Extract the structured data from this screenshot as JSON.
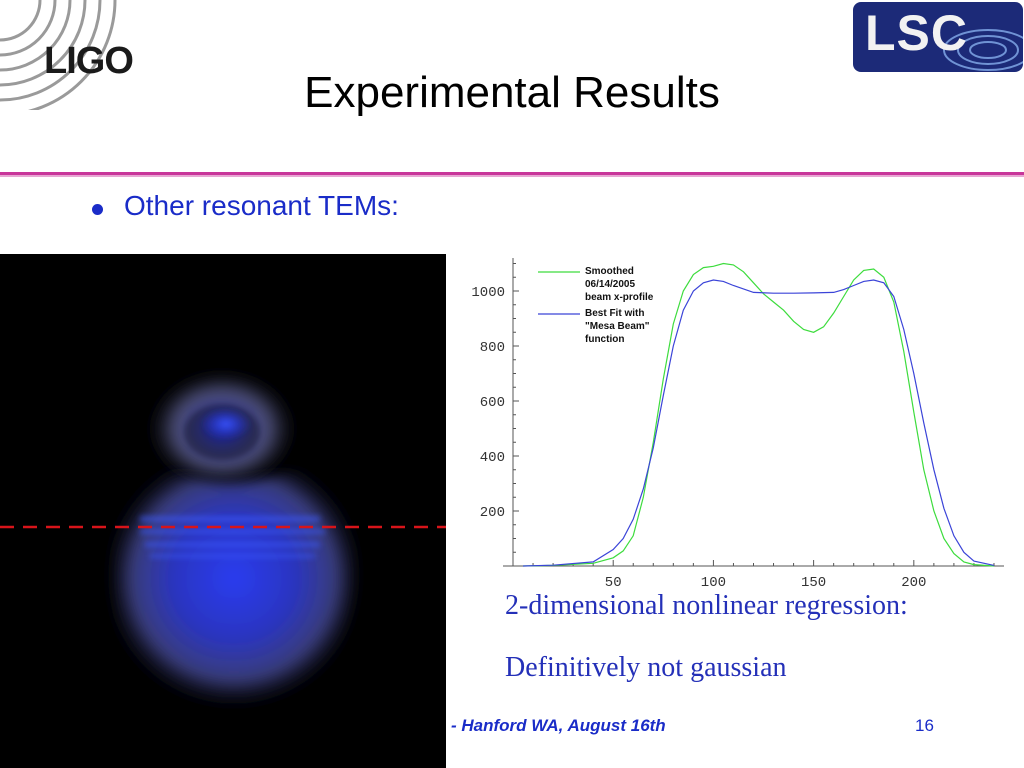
{
  "header": {
    "ligo_logo_text": "LIGO",
    "lsc_logo_text": "LSC",
    "title": "Experimental Results"
  },
  "bullets": [
    {
      "text": "Other resonant TEMs:"
    }
  ],
  "notes": [
    "2-dimensional nonlinear regression:",
    "Definitively not gaussian"
  ],
  "footer": {
    "text": "- Hanford WA, August 16th",
    "page_number": "16"
  },
  "colors": {
    "accent_blue": "#1a2cc8",
    "divider_magenta": "#c8359a",
    "smoothed_series": "#3ddc3d",
    "fit_series": "#3b44d8",
    "scan_line": "#d8141a"
  },
  "chart_data": {
    "type": "line",
    "title": "",
    "xlabel": "",
    "ylabel": "",
    "xlim": [
      0,
      245
    ],
    "ylim": [
      0,
      1120
    ],
    "xticks": [
      50,
      100,
      150,
      200
    ],
    "yticks": [
      200,
      400,
      600,
      800,
      1000
    ],
    "legend_position": "top-left",
    "series": [
      {
        "name": "Smoothed 06/14/2005 beam x-profile",
        "legend_lines": [
          "Smoothed",
          "06/14/2005",
          "beam x-profile"
        ],
        "color": "#3ddc3d",
        "x": [
          5,
          20,
          40,
          50,
          55,
          60,
          65,
          70,
          75,
          80,
          85,
          90,
          95,
          100,
          105,
          110,
          115,
          120,
          125,
          130,
          135,
          140,
          145,
          150,
          155,
          160,
          165,
          170,
          175,
          180,
          185,
          190,
          195,
          200,
          205,
          210,
          215,
          220,
          225,
          230,
          240
        ],
        "y": [
          0,
          2,
          10,
          30,
          55,
          110,
          250,
          450,
          680,
          880,
          1000,
          1060,
          1085,
          1090,
          1100,
          1095,
          1070,
          1030,
          990,
          960,
          930,
          890,
          860,
          850,
          870,
          920,
          980,
          1040,
          1075,
          1080,
          1050,
          960,
          780,
          560,
          350,
          200,
          100,
          45,
          15,
          5,
          0
        ]
      },
      {
        "name": "Best Fit with \"Mesa Beam\" function",
        "legend_lines": [
          "Best Fit with",
          "\"Mesa Beam\"",
          "function"
        ],
        "color": "#3b44d8",
        "x": [
          5,
          20,
          40,
          50,
          55,
          60,
          65,
          70,
          75,
          80,
          85,
          90,
          95,
          100,
          105,
          110,
          120,
          130,
          140,
          150,
          160,
          165,
          170,
          175,
          180,
          185,
          190,
          195,
          200,
          205,
          210,
          215,
          220,
          225,
          230,
          240
        ],
        "y": [
          0,
          3,
          15,
          60,
          100,
          170,
          280,
          430,
          620,
          800,
          930,
          1000,
          1030,
          1040,
          1035,
          1020,
          995,
          992,
          992,
          993,
          995,
          1005,
          1020,
          1035,
          1040,
          1030,
          980,
          860,
          700,
          520,
          350,
          210,
          110,
          50,
          18,
          2
        ]
      }
    ]
  }
}
